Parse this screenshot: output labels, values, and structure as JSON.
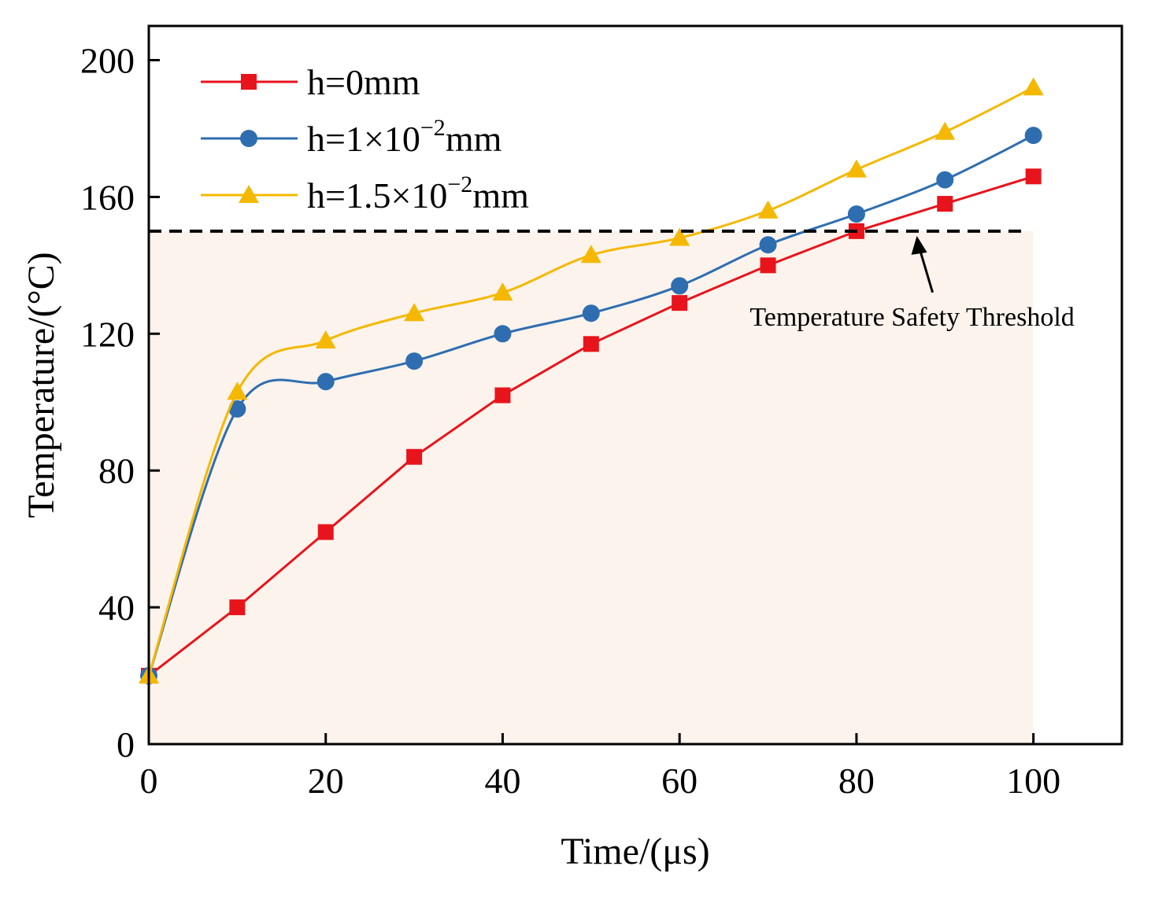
{
  "chart_data": {
    "type": "line",
    "title": "",
    "xlabel": "Time/(μs)",
    "ylabel": "Temperature/(°C)",
    "xlim": [
      0,
      110
    ],
    "ylim": [
      0,
      210
    ],
    "xticks": [
      0,
      20,
      40,
      60,
      80,
      100
    ],
    "yticks": [
      0,
      40,
      80,
      120,
      160,
      200
    ],
    "grid": false,
    "legend_position": "top-left",
    "x": [
      0,
      10,
      20,
      30,
      40,
      50,
      60,
      70,
      80,
      90,
      100
    ],
    "series": [
      {
        "name_base": "h=0mm",
        "name_exp": "",
        "name_tail": "",
        "marker": "square",
        "color": "#e8141c",
        "smooth": false,
        "values": [
          20,
          40,
          62,
          84,
          102,
          117,
          129,
          140,
          150,
          158,
          166
        ]
      },
      {
        "name_base": "h=1×10",
        "name_exp": "−2",
        "name_tail": "mm",
        "marker": "circle",
        "color": "#2e6eb0",
        "smooth": true,
        "values": [
          20,
          98,
          106,
          112,
          120,
          126,
          134,
          146,
          155,
          165,
          178
        ]
      },
      {
        "name_base": "h=1.5×10",
        "name_exp": "−2",
        "name_tail": "mm",
        "marker": "triangle",
        "color": "#f5b800",
        "smooth": true,
        "values": [
          20,
          103,
          118,
          126,
          132,
          143,
          148,
          156,
          168,
          179,
          192
        ]
      }
    ],
    "threshold": {
      "value": 150,
      "label": "Temperature Safety Threshold",
      "line_color": "#000000",
      "arrow_x": 87,
      "label_x": 87,
      "label_y": 127
    },
    "shaded_region": {
      "x_range": [
        0,
        100
      ],
      "y_range": [
        0,
        150
      ],
      "color": "#fcf3ec"
    }
  }
}
